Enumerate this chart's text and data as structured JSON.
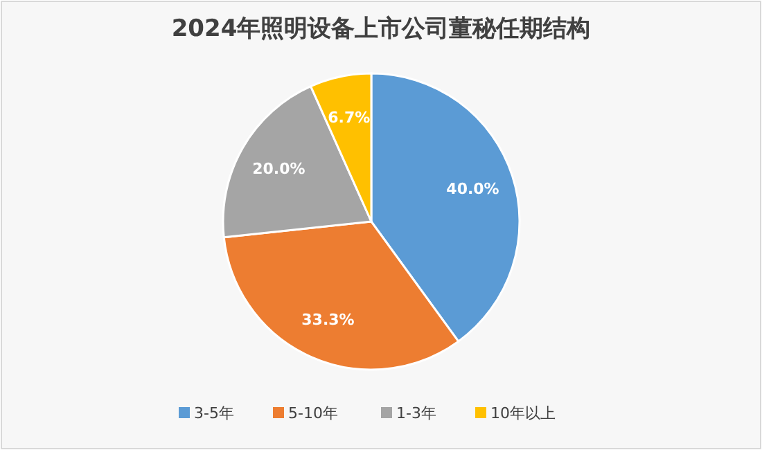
{
  "chart_data": {
    "type": "pie",
    "title": "2024年照明设备上市公司董秘任期结构",
    "categories": [
      "3-5年",
      "5-10年",
      "1-3年",
      "10年以上"
    ],
    "values": [
      40.0,
      33.3,
      20.0,
      6.7
    ],
    "colors": [
      "#5b9bd5",
      "#ed7d31",
      "#a5a5a5",
      "#ffc000"
    ],
    "value_labels": [
      "40.0%",
      "33.3%",
      "20.0%",
      "6.7%"
    ],
    "legend": "bottom"
  }
}
